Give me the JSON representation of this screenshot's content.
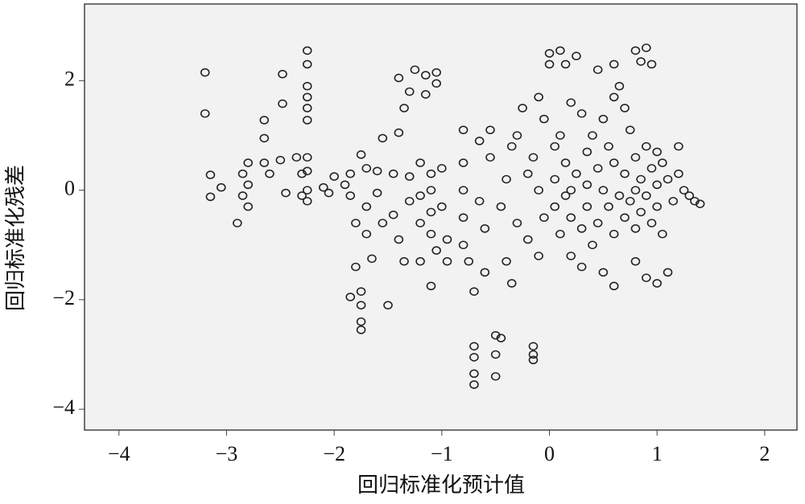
{
  "chart_data": {
    "type": "scatter",
    "x_label": "回归标准化预计值",
    "y_label": "回归标准化残差",
    "xlim": [
      -4.32,
      2.3
    ],
    "ylim": [
      -4.38,
      3.4
    ],
    "xticks": [
      {
        "value": -4,
        "label": "−4"
      },
      {
        "value": -3,
        "label": "−3"
      },
      {
        "value": -2,
        "label": "−2"
      },
      {
        "value": -1,
        "label": "−1"
      },
      0,
      1,
      2
    ],
    "yticks": [
      {
        "value": -4,
        "label": "−4"
      },
      {
        "value": -2,
        "label": "−2"
      },
      0,
      2
    ],
    "series": [
      {
        "color": "#222",
        "x": [
          -3.2,
          -3.2,
          -3.15,
          -3.15,
          -3.05,
          -2.9,
          -2.85,
          -2.8,
          -2.8,
          -2.8,
          -2.85,
          -2.65,
          -2.65,
          -2.65,
          -2.6,
          -2.5,
          -2.48,
          -2.48,
          -2.45,
          -2.35,
          -2.3,
          -2.3,
          -2.25,
          -2.25,
          -2.25,
          -2.25,
          -2.25,
          -2.25,
          -2.25,
          -2.25,
          -2.25,
          -2.25,
          -2.1,
          -2.05,
          -2.0,
          -1.9,
          -1.85,
          -1.85,
          -1.8,
          -1.8,
          -1.85,
          -1.75,
          -1.75,
          -1.75,
          -1.75,
          -1.75,
          -1.7,
          -1.7,
          -1.7,
          -1.65,
          -1.6,
          -1.6,
          -1.55,
          -1.55,
          -1.5,
          -1.45,
          -1.45,
          -1.4,
          -1.4,
          -1.35,
          -1.3,
          -1.3,
          -1.4,
          -1.35,
          -1.3,
          -1.25,
          -1.2,
          -1.2,
          -1.2,
          -1.2,
          -1.15,
          -1.15,
          -1.1,
          -1.1,
          -1.1,
          -1.1,
          -1.1,
          -1.05,
          -1.05,
          -1.05,
          -1.0,
          -1.0,
          -0.95,
          -0.95,
          -0.8,
          -0.8,
          -0.8,
          -0.8,
          -0.8,
          -0.75,
          -0.7,
          -0.7,
          -0.7,
          -0.7,
          -0.7,
          -0.65,
          -0.65,
          -0.6,
          -0.6,
          -0.55,
          -0.55,
          -0.5,
          -0.5,
          -0.5,
          -0.45,
          -0.45,
          -0.4,
          -0.4,
          -0.35,
          -0.35,
          -0.3,
          -0.3,
          -0.25,
          -0.2,
          -0.2,
          -0.15,
          -0.15,
          -0.15,
          -0.15,
          -0.1,
          -0.1,
          -0.1,
          -0.05,
          -0.05,
          0,
          0,
          0.05,
          0.05,
          0.05,
          0.1,
          0.1,
          0.1,
          0.15,
          0.15,
          0.15,
          0.2,
          0.2,
          0.2,
          0.2,
          0.25,
          0.25,
          0.3,
          0.3,
          0.3,
          0.35,
          0.35,
          0.35,
          0.4,
          0.4,
          0.45,
          0.45,
          0.45,
          0.5,
          0.5,
          0.5,
          0.55,
          0.55,
          0.6,
          0.6,
          0.6,
          0.6,
          0.6,
          0.65,
          0.65,
          0.7,
          0.7,
          0.7,
          0.75,
          0.75,
          0.8,
          0.8,
          0.8,
          0.8,
          0.8,
          0.85,
          0.85,
          0.85,
          0.9,
          0.9,
          0.9,
          0.9,
          0.95,
          0.95,
          0.95,
          1.0,
          1.0,
          1.0,
          1.0,
          1.05,
          1.05,
          1.1,
          1.1,
          1.15,
          1.2,
          1.2,
          1.3,
          1.35,
          1.4,
          1.25
        ],
        "values": [
          2.15,
          1.4,
          0.28,
          -0.12,
          0.05,
          -0.6,
          0.3,
          0.5,
          0.1,
          -0.3,
          -0.1,
          1.28,
          0.95,
          0.5,
          0.3,
          0.55,
          2.12,
          1.58,
          -0.05,
          0.6,
          0.3,
          -0.1,
          2.55,
          2.3,
          1.9,
          1.7,
          1.5,
          1.28,
          0.6,
          0.35,
          0.0,
          -0.2,
          0.05,
          -0.05,
          0.25,
          0.1,
          0.3,
          -0.1,
          -0.6,
          -1.4,
          -1.95,
          -1.85,
          -2.1,
          -2.4,
          -2.55,
          0.65,
          0.4,
          -0.3,
          -0.8,
          -1.25,
          -0.05,
          0.35,
          0.95,
          -0.6,
          -2.1,
          0.3,
          -0.45,
          1.05,
          -0.9,
          -1.3,
          0.25,
          -0.2,
          2.05,
          1.5,
          1.8,
          2.2,
          0.5,
          -0.1,
          -0.6,
          -1.3,
          2.1,
          1.75,
          0.3,
          0.0,
          -0.4,
          -0.8,
          -1.75,
          2.15,
          1.95,
          -1.1,
          0.4,
          -0.3,
          -0.9,
          -1.3,
          1.1,
          0.5,
          0.0,
          -0.5,
          -1.0,
          -1.3,
          -1.85,
          -2.85,
          -3.05,
          -3.35,
          -3.55,
          0.9,
          -0.2,
          -0.7,
          -1.5,
          1.1,
          0.6,
          -2.65,
          -3.0,
          -3.4,
          -2.7,
          -0.3,
          0.2,
          -1.3,
          -1.7,
          0.8,
          1.0,
          -0.6,
          1.5,
          0.3,
          -0.9,
          -2.85,
          -3.0,
          -3.1,
          0.6,
          1.7,
          0.0,
          -1.2,
          1.3,
          -0.5,
          2.5,
          2.3,
          0.8,
          0.2,
          -0.3,
          2.55,
          1.0,
          -0.8,
          2.3,
          0.5,
          -0.1,
          1.6,
          0.0,
          -0.5,
          -1.2,
          2.45,
          0.3,
          1.4,
          -0.7,
          -1.4,
          0.7,
          0.1,
          -0.3,
          1.0,
          -1.0,
          2.2,
          0.4,
          -0.6,
          1.3,
          0.0,
          -1.5,
          0.8,
          -0.3,
          2.3,
          1.7,
          0.5,
          -0.8,
          -1.75,
          1.9,
          -0.1,
          1.5,
          0.3,
          -0.5,
          1.1,
          -0.2,
          2.55,
          0.6,
          0.0,
          -0.7,
          -1.3,
          2.35,
          0.2,
          -0.4,
          2.6,
          0.8,
          -0.1,
          -1.6,
          2.3,
          0.4,
          -0.6,
          0.7,
          0.1,
          -0.3,
          -1.7,
          0.5,
          -0.8,
          0.2,
          -1.5,
          -0.2,
          0.8,
          0.3,
          -0.1,
          -0.2,
          -0.25,
          0.0
        ]
      }
    ]
  }
}
